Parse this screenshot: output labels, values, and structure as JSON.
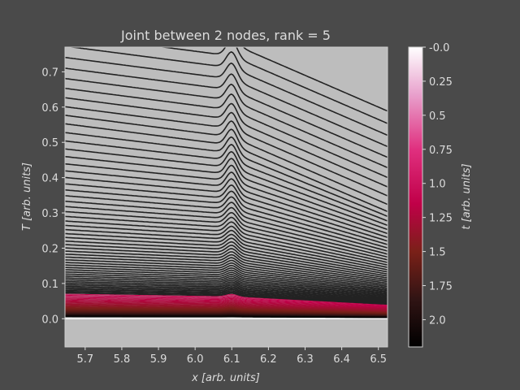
{
  "chart_data": {
    "type": "line",
    "title": "Joint between 2 nodes, rank = 5",
    "xlabel": "x [arb. units]",
    "ylabel": "T [arb. units]",
    "xlim": [
      5.645,
      6.525
    ],
    "ylim": [
      -0.08,
      0.77
    ],
    "x_ticks": [
      5.7,
      5.8,
      5.9,
      6.0,
      6.1,
      6.2,
      6.3,
      6.4,
      6.5
    ],
    "x_tick_labels": [
      "5.7",
      "5.8",
      "5.9",
      "6.0",
      "6.1",
      "6.2",
      "6.3",
      "6.4",
      "6.5"
    ],
    "y_ticks": [
      0.0,
      0.1,
      0.2,
      0.3,
      0.4,
      0.5,
      0.6,
      0.7
    ],
    "y_tick_labels": [
      "0.0",
      "0.1",
      "0.2",
      "0.3",
      "0.4",
      "0.5",
      "0.6",
      "0.7"
    ],
    "grid": false,
    "plot_background": "#bdbdbd",
    "figure_background": "#4a4a4a",
    "series_description": {
      "color_by": "t",
      "left_slope": -0.135,
      "right_slope": -0.45,
      "joint_center": 6.1,
      "joint_half_width": 0.03,
      "joint_bump": 0.045
    },
    "colorbar": {
      "label": "t [arb. units]",
      "range": [
        0.0,
        2.2
      ],
      "reversed": true,
      "ticks": [
        0.0,
        0.25,
        0.5,
        0.75,
        1.0,
        1.25,
        1.5,
        1.75,
        2.0
      ],
      "tick_labels": [
        "-0.0",
        "0.25",
        "0.5",
        "0.75",
        "1.0",
        "1.25",
        "1.5",
        "1.75",
        "2.0"
      ],
      "colormap_stops": [
        {
          "t": 0.0,
          "color": "#ffffff"
        },
        {
          "t": 0.35,
          "color": "#e8a0cc"
        },
        {
          "t": 0.75,
          "color": "#e0307f"
        },
        {
          "t": 1.15,
          "color": "#c00048"
        },
        {
          "t": 1.5,
          "color": "#7a2018"
        },
        {
          "t": 1.85,
          "color": "#301414"
        },
        {
          "t": 2.2,
          "color": "#000000"
        }
      ]
    }
  }
}
